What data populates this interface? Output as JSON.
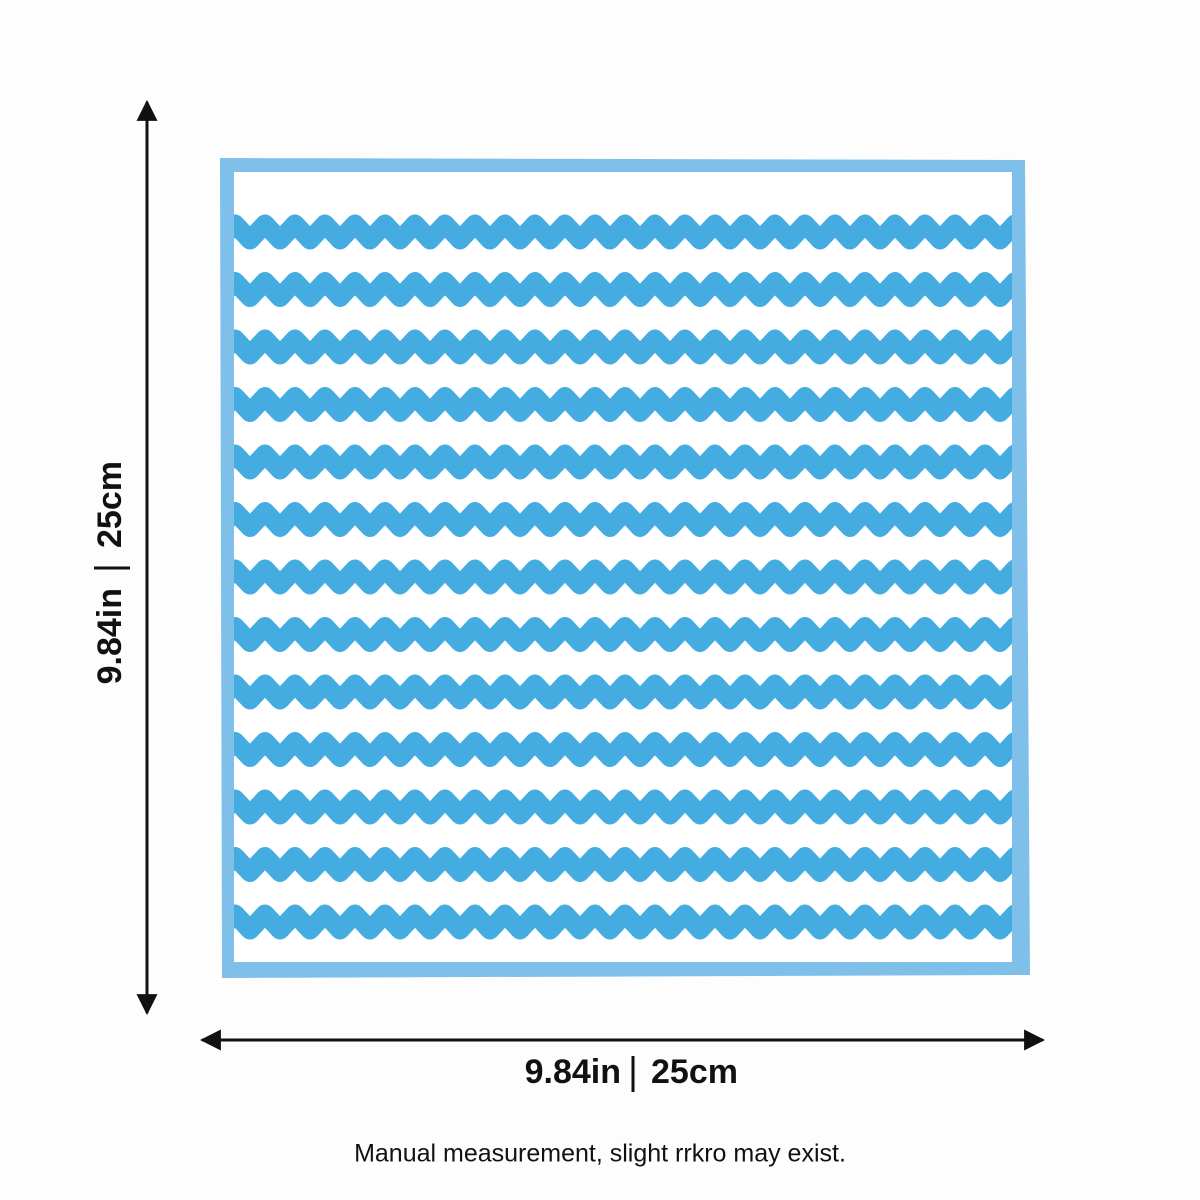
{
  "dimensions": {
    "height": {
      "inches": "9.84in",
      "cm": "25cm"
    },
    "width": {
      "inches": "9.84in",
      "cm": "25cm"
    }
  },
  "note": "Manual measurement, slight rrkro may exist."
}
